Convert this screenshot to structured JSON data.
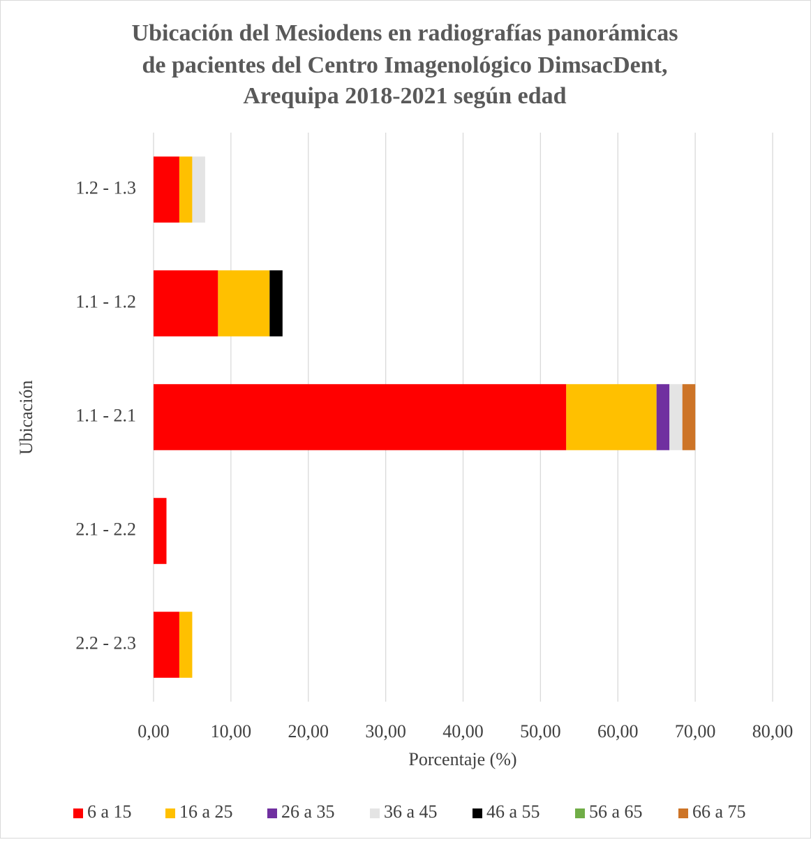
{
  "chart_data": {
    "type": "stacked-barh",
    "title": [
      "Ubicación del Mesiodens en radiografías panorámicas",
      "de pacientes del Centro Imagenológico DimsacDent,",
      "Arequipa 2018-2021 según edad"
    ],
    "x_label": "Porcentaje (%)",
    "y_label": "Ubicación",
    "categories": [
      "1.2 - 1.3",
      "1.1 - 1.2",
      "1.1 - 2.1",
      "2.1 - 2.2",
      "2.2 - 2.3"
    ],
    "series": [
      {
        "name": "6 a 15",
        "color": "#ff0000",
        "values": [
          3.33,
          8.33,
          53.33,
          1.67,
          3.33
        ]
      },
      {
        "name": "16 a 25",
        "color": "#ffc000",
        "values": [
          1.67,
          6.67,
          11.67,
          0,
          1.67
        ]
      },
      {
        "name": "26 a 35",
        "color": "#7030a0",
        "values": [
          0,
          0,
          1.67,
          0,
          0
        ]
      },
      {
        "name": "36 a 45",
        "color": "#e4e4e4",
        "values": [
          1.67,
          0,
          1.67,
          0,
          0
        ]
      },
      {
        "name": "46 a 55",
        "color": "#000000",
        "values": [
          0,
          1.67,
          0,
          0,
          0
        ]
      },
      {
        "name": "56 a 65",
        "color": "#70ad47",
        "values": [
          0,
          0,
          0,
          0,
          0
        ]
      },
      {
        "name": "66 a 75",
        "color": "#cd7427",
        "values": [
          0,
          0,
          1.67,
          0,
          0
        ]
      }
    ],
    "xlim": [
      0,
      80
    ],
    "xticks": [
      {
        "value": 0,
        "label": "0,00"
      },
      {
        "value": 10,
        "label": "10,00"
      },
      {
        "value": 20,
        "label": "20,00"
      },
      {
        "value": 30,
        "label": "30,00"
      },
      {
        "value": 40,
        "label": "40,00"
      },
      {
        "value": 50,
        "label": "50,00"
      },
      {
        "value": 60,
        "label": "60,00"
      },
      {
        "value": 70,
        "label": "70,00"
      },
      {
        "value": 80,
        "label": "80,00"
      }
    ],
    "grid": true,
    "legend": "bottom"
  }
}
